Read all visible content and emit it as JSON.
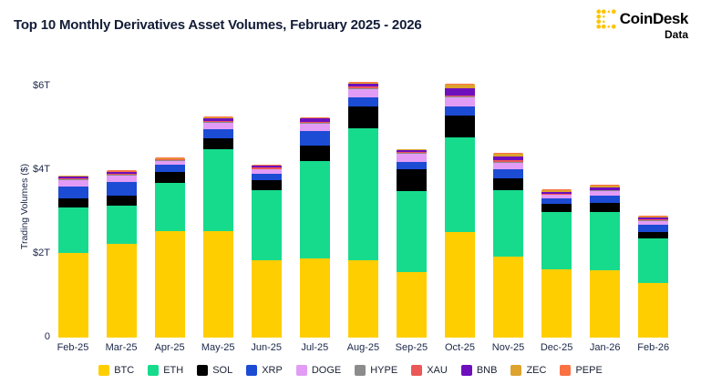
{
  "header": {
    "title": "Top 10 Monthly Derivatives Asset Volumes, February 2025 - 2026",
    "brand": {
      "name": "CoinDesk",
      "sub": "Data",
      "logo_color": "#FFC400"
    }
  },
  "chart_data": {
    "type": "bar",
    "stacked": true,
    "title": "Top 10 Monthly Derivatives Asset Volumes, February 2025 - 2026",
    "xlabel": "",
    "ylabel": "Trading Volumes ($)",
    "units": "trillions USD",
    "grid": false,
    "legend_position": "bottom",
    "ylim": [
      0,
      6.5
    ],
    "yticks": [
      {
        "value": 0,
        "label": "0"
      },
      {
        "value": 2,
        "label": "$2T"
      },
      {
        "value": 4,
        "label": "$4T"
      },
      {
        "value": 6,
        "label": "$6T"
      }
    ],
    "categories": [
      "Feb-25",
      "Mar-25",
      "Apr-25",
      "May-25",
      "Jun-25",
      "Jul-25",
      "Aug-25",
      "Sep-25",
      "Oct-25",
      "Nov-25",
      "Dec-25",
      "Jan-26",
      "Feb-26"
    ],
    "series": [
      {
        "name": "BTC",
        "color": "#FFCE00",
        "values": [
          2.02,
          2.24,
          2.55,
          2.55,
          1.85,
          1.89,
          1.85,
          1.56,
          2.53,
          1.94,
          1.63,
          1.61,
          1.3
        ]
      },
      {
        "name": "ETH",
        "color": "#17DB8C",
        "values": [
          1.08,
          0.9,
          1.14,
          1.94,
          1.66,
          2.33,
          3.15,
          1.94,
          2.25,
          1.59,
          1.36,
          1.39,
          1.06
        ]
      },
      {
        "name": "SOL",
        "color": "#000000",
        "values": [
          0.22,
          0.26,
          0.26,
          0.26,
          0.24,
          0.37,
          0.51,
          0.51,
          0.53,
          0.28,
          0.2,
          0.22,
          0.17
        ]
      },
      {
        "name": "XRP",
        "color": "#1C4BD4",
        "values": [
          0.29,
          0.31,
          0.18,
          0.22,
          0.17,
          0.34,
          0.22,
          0.18,
          0.2,
          0.22,
          0.13,
          0.17,
          0.16
        ]
      },
      {
        "name": "DOGE",
        "color": "#E29CF6",
        "values": [
          0.15,
          0.15,
          0.09,
          0.16,
          0.09,
          0.17,
          0.2,
          0.2,
          0.22,
          0.15,
          0.09,
          0.1,
          0.09
        ]
      },
      {
        "name": "HYPE",
        "color": "#8C8C8C",
        "values": [
          0.02,
          0.02,
          0.01,
          0.02,
          0.02,
          0.02,
          0.03,
          0.02,
          0.03,
          0.02,
          0.01,
          0.02,
          0.02
        ]
      },
      {
        "name": "XAU",
        "color": "#EB5757",
        "values": [
          0.03,
          0.03,
          0.02,
          0.03,
          0.03,
          0.04,
          0.04,
          0.03,
          0.03,
          0.03,
          0.02,
          0.02,
          0.03
        ]
      },
      {
        "name": "BNB",
        "color": "#6E0FBE",
        "values": [
          0.04,
          0.04,
          0.02,
          0.06,
          0.04,
          0.07,
          0.07,
          0.04,
          0.17,
          0.09,
          0.04,
          0.06,
          0.04
        ]
      },
      {
        "name": "ZEC",
        "color": "#DDA32E",
        "values": [
          0.01,
          0.01,
          0.01,
          0.01,
          0.01,
          0.01,
          0.01,
          0.01,
          0.08,
          0.08,
          0.05,
          0.04,
          0.02
        ]
      },
      {
        "name": "PEPE",
        "color": "#FA7144",
        "values": [
          0.02,
          0.03,
          0.02,
          0.03,
          0.03,
          0.03,
          0.03,
          0.02,
          0.02,
          0.02,
          0.02,
          0.02,
          0.02
        ]
      }
    ]
  }
}
